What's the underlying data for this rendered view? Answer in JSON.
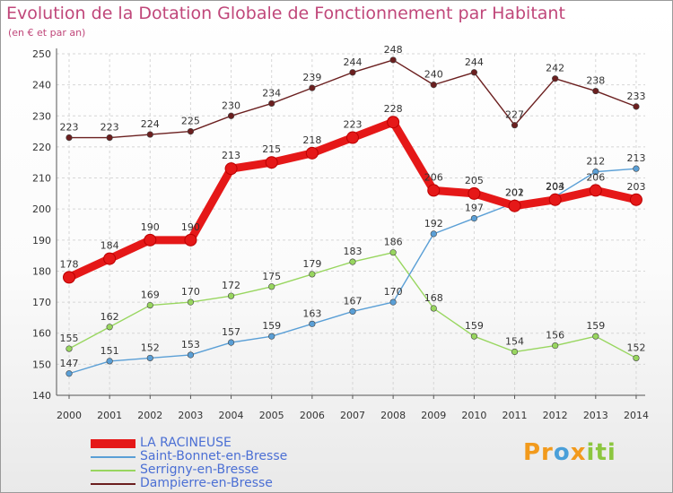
{
  "title": "Evolution de la Dotation Globale de Fonctionnement par Habitant",
  "subtitle": "(en € et par an)",
  "logo": {
    "p1": "Pr",
    "p2": "o",
    "p3": "x",
    "p4": "i",
    "p5": "ti"
  },
  "chart_data": {
    "type": "line",
    "x": [
      "2000",
      "2001",
      "2002",
      "2003",
      "2004",
      "2005",
      "2006",
      "2007",
      "2008",
      "2009",
      "2010",
      "2011",
      "2012",
      "2013",
      "2014"
    ],
    "ylim": [
      140,
      250
    ],
    "yticks": [
      "140",
      "150",
      "160",
      "170",
      "180",
      "190",
      "200",
      "210",
      "220",
      "230",
      "240",
      "250"
    ],
    "grid": true,
    "legend_position": "bottom-left",
    "series": [
      {
        "name": "Dampierre-en-Bresse",
        "color": "#6b1f1f",
        "labels": [
          "223",
          "223",
          "224",
          "225",
          "230",
          "234",
          "239",
          "244",
          "248",
          "240",
          "244",
          "227",
          "242",
          "238",
          "233"
        ],
        "values": [
          223,
          223,
          224,
          225,
          230,
          234,
          239,
          244,
          248,
          240,
          244,
          227,
          242,
          238,
          233
        ]
      },
      {
        "name": "Serrigny-en-Bresse",
        "color": "#98d65f",
        "labels": [
          "155",
          "162",
          "169",
          "170",
          "172",
          "175",
          "179",
          "183",
          "186",
          "168",
          "159",
          "154",
          "156",
          "159",
          "152"
        ],
        "values": [
          155,
          162,
          169,
          170,
          172,
          175,
          179,
          183,
          186,
          168,
          159,
          154,
          156,
          159,
          152
        ]
      },
      {
        "name": "Saint-Bonnet-en-Bresse",
        "color": "#5a9fd6",
        "labels": [
          "147",
          "151",
          "152",
          "153",
          "157",
          "159",
          "163",
          "167",
          "170",
          "192",
          "197",
          "202",
          "204",
          "212",
          "213"
        ],
        "values": [
          147,
          151,
          152,
          153,
          157,
          159,
          163,
          167,
          170,
          192,
          197,
          202,
          204,
          212,
          213
        ]
      },
      {
        "name": "LA RACINEUSE",
        "color": "#e51818",
        "labels": [
          "178",
          "184",
          "190",
          "190",
          "213",
          "215",
          "218",
          "223",
          "228",
          "206",
          "205",
          "201",
          "203",
          "206",
          "203"
        ],
        "values": [
          178,
          184,
          190,
          190,
          213,
          215,
          218,
          223,
          228,
          206,
          205,
          201,
          203,
          206,
          203
        ]
      }
    ]
  },
  "legend": [
    {
      "name": "LA RACINEUSE",
      "color": "#e51818"
    },
    {
      "name": "Saint-Bonnet-en-Bresse",
      "color": "#5a9fd6"
    },
    {
      "name": "Serrigny-en-Bresse",
      "color": "#98d65f"
    },
    {
      "name": "Dampierre-en-Bresse",
      "color": "#6b1f1f"
    }
  ]
}
